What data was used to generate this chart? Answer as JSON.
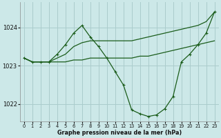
{
  "xlabel": "Graphe pression niveau de la mer (hPa)",
  "bg_color": "#cce8e8",
  "grid_color": "#aacccc",
  "line_color": "#1a5c1a",
  "ylim": [
    1021.55,
    1024.65
  ],
  "xlim": [
    -0.5,
    23.5
  ],
  "yticks": [
    1022,
    1023,
    1024
  ],
  "xticks": [
    0,
    1,
    2,
    3,
    4,
    5,
    6,
    7,
    8,
    9,
    10,
    11,
    12,
    13,
    14,
    15,
    16,
    17,
    18,
    19,
    20,
    21,
    22,
    23
  ],
  "line_flat_x": [
    0,
    1,
    2,
    3,
    4,
    5,
    6,
    7,
    8,
    9,
    10,
    11,
    12,
    13,
    14,
    15,
    16,
    17,
    18,
    19,
    20,
    21,
    22,
    23
  ],
  "line_flat_y": [
    1023.2,
    1023.1,
    1023.1,
    1023.1,
    1023.1,
    1023.1,
    1023.15,
    1023.15,
    1023.2,
    1023.2,
    1023.2,
    1023.2,
    1023.2,
    1023.2,
    1023.25,
    1023.25,
    1023.3,
    1023.35,
    1023.4,
    1023.45,
    1023.5,
    1023.55,
    1023.6,
    1023.65
  ],
  "line_diag_x": [
    0,
    1,
    2,
    3,
    4,
    5,
    6,
    7,
    8,
    9,
    10,
    11,
    12,
    13,
    14,
    15,
    16,
    17,
    18,
    19,
    20,
    21,
    22,
    23
  ],
  "line_diag_y": [
    1023.2,
    1023.1,
    1023.1,
    1023.1,
    1023.2,
    1023.3,
    1023.5,
    1023.6,
    1023.65,
    1023.65,
    1023.65,
    1023.65,
    1023.65,
    1023.65,
    1023.7,
    1023.75,
    1023.8,
    1023.85,
    1023.9,
    1023.95,
    1024.0,
    1024.05,
    1024.15,
    1024.4
  ],
  "line_main_x": [
    0,
    1,
    2,
    3,
    4,
    5,
    6,
    7,
    8,
    9,
    10,
    11,
    12,
    13,
    14,
    15,
    16,
    17,
    18,
    19,
    20,
    21,
    22,
    23
  ],
  "line_main_y": [
    1023.2,
    1023.1,
    1023.1,
    1023.1,
    1023.3,
    1023.55,
    1023.85,
    1024.05,
    1023.75,
    1023.5,
    1023.2,
    1022.85,
    1022.5,
    1021.85,
    1021.75,
    1021.68,
    1021.72,
    1021.88,
    1022.2,
    1023.1,
    1023.3,
    1023.55,
    1023.85,
    1024.4
  ],
  "marker": "+"
}
